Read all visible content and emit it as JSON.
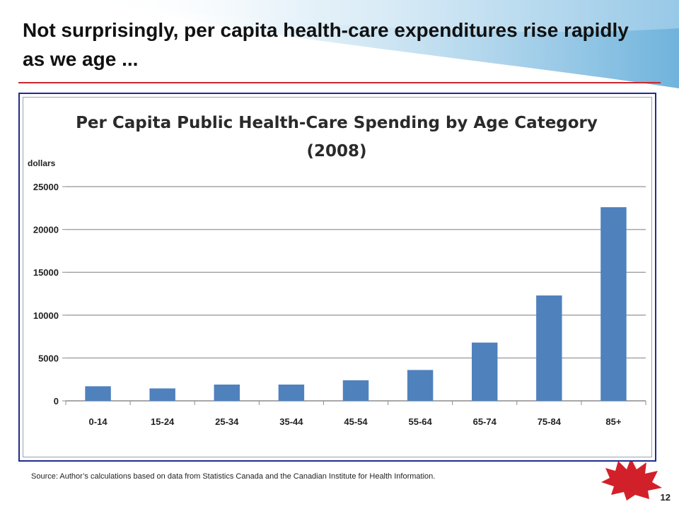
{
  "slide": {
    "title": "Not surprisingly, per capita health-care expenditures rise rapidly as we age ...",
    "source": "Source: Author’s calculations based on data from Statistics Canada and the Canadian Institute for Health Information.",
    "page_number": "12",
    "colors": {
      "rule": "#c8282d",
      "frame": "#1f2d8c",
      "swoosh": "#7ab8dc"
    },
    "icons": [
      "maple-leaf-icon"
    ]
  },
  "chart_data": {
    "type": "bar",
    "title": "Per Capita Public Health-Care Spending by Age Category",
    "subtitle": "(2008)",
    "ylabel": "dollars",
    "xlabel": "",
    "categories": [
      "0-14",
      "15-24",
      "25-34",
      "35-44",
      "45-54",
      "55-64",
      "65-74",
      "75-84",
      "85+"
    ],
    "values": [
      1700,
      1450,
      1900,
      1900,
      2400,
      3600,
      6800,
      12300,
      22600
    ],
    "ylim": [
      0,
      25000
    ],
    "yticks": [
      "0",
      "5000",
      "10000",
      "15000",
      "20000",
      "25000"
    ],
    "grid": true,
    "legend": "none",
    "bar_color": "#4f81bd"
  }
}
